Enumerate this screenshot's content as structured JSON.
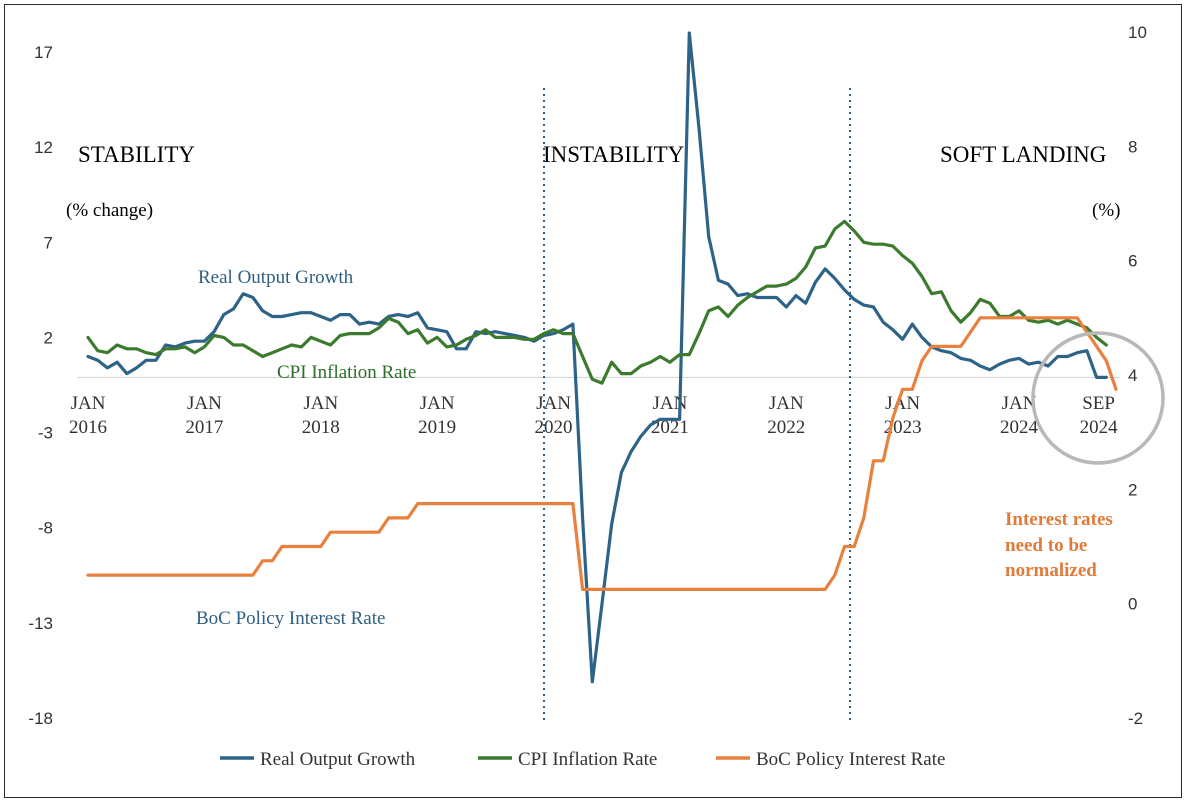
{
  "chart_data": {
    "type": "line",
    "title": "",
    "y_left": {
      "label": "(% change)",
      "range": [
        -18,
        17
      ],
      "ticks": [
        "17",
        "12",
        "7",
        "2",
        "-3",
        "-8",
        "-13",
        "-18"
      ]
    },
    "y_right": {
      "label": "(%)",
      "range": [
        -2,
        10
      ],
      "ticks": [
        "10",
        "8",
        "6",
        "4",
        "2",
        "0",
        "-2"
      ]
    },
    "x_ticks": [
      {
        "month": "JAN",
        "year": "2016",
        "t": 0
      },
      {
        "month": "JAN",
        "year": "2017",
        "t": 12
      },
      {
        "month": "JAN",
        "year": "2018",
        "t": 24
      },
      {
        "month": "JAN",
        "year": "2019",
        "t": 36
      },
      {
        "month": "JAN",
        "year": "2020",
        "t": 48
      },
      {
        "month": "JAN",
        "year": "2021",
        "t": 60
      },
      {
        "month": "JAN",
        "year": "2022",
        "t": 72
      },
      {
        "month": "JAN",
        "year": "2023",
        "t": 84
      },
      {
        "month": "JAN",
        "year": "2024",
        "t": 96
      },
      {
        "month": "SEP",
        "year": "2024",
        "t": 104
      }
    ],
    "regions": [
      {
        "label": "STABILITY"
      },
      {
        "label": "INSTABILITY"
      },
      {
        "label": "SOFT LANDING"
      }
    ],
    "dividers_t": [
      47,
      79
    ],
    "series": [
      {
        "name": "Real Output Growth",
        "axis": "left",
        "color": "#2e6388",
        "points": [
          [
            0,
            1.0
          ],
          [
            1,
            0.8
          ],
          [
            2,
            0.4
          ],
          [
            3,
            0.7
          ],
          [
            4,
            0.1
          ],
          [
            5,
            0.4
          ],
          [
            6,
            0.8
          ],
          [
            7,
            0.8
          ],
          [
            8,
            1.6
          ],
          [
            9,
            1.5
          ],
          [
            10,
            1.7
          ],
          [
            11,
            1.8
          ],
          [
            12,
            1.8
          ],
          [
            13,
            2.3
          ],
          [
            14,
            3.2
          ],
          [
            15,
            3.5
          ],
          [
            16,
            4.3
          ],
          [
            17,
            4.1
          ],
          [
            18,
            3.4
          ],
          [
            19,
            3.1
          ],
          [
            20,
            3.1
          ],
          [
            21,
            3.2
          ],
          [
            22,
            3.3
          ],
          [
            23,
            3.3
          ],
          [
            24,
            3.1
          ],
          [
            25,
            2.9
          ],
          [
            26,
            3.2
          ],
          [
            27,
            3.2
          ],
          [
            28,
            2.7
          ],
          [
            29,
            2.8
          ],
          [
            30,
            2.7
          ],
          [
            31,
            3.1
          ],
          [
            32,
            3.2
          ],
          [
            33,
            3.1
          ],
          [
            34,
            3.3
          ],
          [
            35,
            2.5
          ],
          [
            36,
            2.4
          ],
          [
            37,
            2.3
          ],
          [
            38,
            1.4
          ],
          [
            39,
            1.4
          ],
          [
            40,
            2.3
          ],
          [
            41,
            2.2
          ],
          [
            42,
            2.3
          ],
          [
            43,
            2.2
          ],
          [
            44,
            2.1
          ],
          [
            45,
            2.0
          ],
          [
            46,
            1.8
          ],
          [
            47,
            2.1
          ],
          [
            48,
            2.2
          ],
          [
            49,
            2.4
          ],
          [
            50,
            2.7
          ],
          [
            51,
            -7.5
          ],
          [
            52,
            -16.1
          ],
          [
            53,
            -12.0
          ],
          [
            54,
            -7.8
          ],
          [
            55,
            -5.1
          ],
          [
            56,
            -4.0
          ],
          [
            57,
            -3.2
          ],
          [
            58,
            -2.6
          ],
          [
            59,
            -2.3
          ],
          [
            60,
            -2.3
          ],
          [
            61,
            -2.3
          ],
          [
            62,
            18.0
          ],
          [
            63,
            13.0
          ],
          [
            64,
            7.3
          ],
          [
            65,
            5.0
          ],
          [
            66,
            4.8
          ],
          [
            67,
            4.2
          ],
          [
            68,
            4.3
          ],
          [
            69,
            4.1
          ],
          [
            70,
            4.1
          ],
          [
            71,
            4.1
          ],
          [
            72,
            3.6
          ],
          [
            73,
            4.2
          ],
          [
            74,
            3.8
          ],
          [
            75,
            4.9
          ],
          [
            76,
            5.6
          ],
          [
            77,
            5.1
          ],
          [
            78,
            4.5
          ],
          [
            79,
            4.0
          ],
          [
            80,
            3.7
          ],
          [
            81,
            3.6
          ],
          [
            82,
            2.8
          ],
          [
            83,
            2.4
          ],
          [
            84,
            1.9
          ],
          [
            85,
            2.7
          ],
          [
            86,
            2.0
          ],
          [
            87,
            1.5
          ],
          [
            88,
            1.3
          ],
          [
            89,
            1.2
          ],
          [
            90,
            0.9
          ],
          [
            91,
            0.8
          ],
          [
            92,
            0.5
          ],
          [
            93,
            0.3
          ],
          [
            94,
            0.6
          ],
          [
            95,
            0.8
          ],
          [
            96,
            0.9
          ],
          [
            97,
            0.6
          ],
          [
            98,
            0.7
          ],
          [
            99,
            0.5
          ],
          [
            100,
            1.0
          ],
          [
            101,
            1.0
          ],
          [
            102,
            1.2
          ],
          [
            103,
            1.3
          ],
          [
            104,
            -0.1
          ],
          [
            105,
            -0.1
          ]
        ]
      },
      {
        "name": "CPI Inflation Rate",
        "axis": "left",
        "color": "#3c7a2e",
        "points": [
          [
            0,
            2.0
          ],
          [
            1,
            1.3
          ],
          [
            2,
            1.2
          ],
          [
            3,
            1.6
          ],
          [
            4,
            1.4
          ],
          [
            5,
            1.4
          ],
          [
            6,
            1.2
          ],
          [
            7,
            1.1
          ],
          [
            8,
            1.4
          ],
          [
            9,
            1.4
          ],
          [
            10,
            1.5
          ],
          [
            11,
            1.2
          ],
          [
            12,
            1.5
          ],
          [
            13,
            2.1
          ],
          [
            14,
            2.0
          ],
          [
            15,
            1.6
          ],
          [
            16,
            1.6
          ],
          [
            17,
            1.3
          ],
          [
            18,
            1.0
          ],
          [
            19,
            1.2
          ],
          [
            20,
            1.4
          ],
          [
            21,
            1.6
          ],
          [
            22,
            1.5
          ],
          [
            23,
            2.0
          ],
          [
            24,
            1.8
          ],
          [
            25,
            1.6
          ],
          [
            26,
            2.1
          ],
          [
            27,
            2.2
          ],
          [
            28,
            2.2
          ],
          [
            29,
            2.2
          ],
          [
            30,
            2.5
          ],
          [
            31,
            3.0
          ],
          [
            32,
            2.8
          ],
          [
            33,
            2.2
          ],
          [
            34,
            2.4
          ],
          [
            35,
            1.7
          ],
          [
            36,
            2.0
          ],
          [
            37,
            1.5
          ],
          [
            38,
            1.6
          ],
          [
            39,
            1.9
          ],
          [
            40,
            2.1
          ],
          [
            41,
            2.4
          ],
          [
            42,
            2.0
          ],
          [
            43,
            2.0
          ],
          [
            44,
            2.0
          ],
          [
            45,
            1.9
          ],
          [
            46,
            1.9
          ],
          [
            47,
            2.2
          ],
          [
            48,
            2.4
          ],
          [
            49,
            2.2
          ],
          [
            50,
            2.2
          ],
          [
            51,
            1.0
          ],
          [
            52,
            -0.2
          ],
          [
            53,
            -0.4
          ],
          [
            54,
            0.7
          ],
          [
            55,
            0.1
          ],
          [
            56,
            0.1
          ],
          [
            57,
            0.5
          ],
          [
            58,
            0.7
          ],
          [
            59,
            1.0
          ],
          [
            60,
            0.7
          ],
          [
            61,
            1.1
          ],
          [
            62,
            1.1
          ],
          [
            63,
            2.2
          ],
          [
            64,
            3.4
          ],
          [
            65,
            3.6
          ],
          [
            66,
            3.1
          ],
          [
            67,
            3.7
          ],
          [
            68,
            4.1
          ],
          [
            69,
            4.4
          ],
          [
            70,
            4.7
          ],
          [
            71,
            4.7
          ],
          [
            72,
            4.8
          ],
          [
            73,
            5.1
          ],
          [
            74,
            5.7
          ],
          [
            75,
            6.7
          ],
          [
            76,
            6.8
          ],
          [
            77,
            7.7
          ],
          [
            78,
            8.1
          ],
          [
            79,
            7.6
          ],
          [
            80,
            7.0
          ],
          [
            81,
            6.9
          ],
          [
            82,
            6.9
          ],
          [
            83,
            6.8
          ],
          [
            84,
            6.3
          ],
          [
            85,
            5.9
          ],
          [
            86,
            5.2
          ],
          [
            87,
            4.3
          ],
          [
            88,
            4.4
          ],
          [
            89,
            3.4
          ],
          [
            90,
            2.8
          ],
          [
            91,
            3.3
          ],
          [
            92,
            4.0
          ],
          [
            93,
            3.8
          ],
          [
            94,
            3.1
          ],
          [
            95,
            3.1
          ],
          [
            96,
            3.4
          ],
          [
            97,
            2.9
          ],
          [
            98,
            2.8
          ],
          [
            99,
            2.9
          ],
          [
            100,
            2.7
          ],
          [
            101,
            2.9
          ],
          [
            102,
            2.7
          ],
          [
            103,
            2.5
          ],
          [
            104,
            2.0
          ],
          [
            105,
            1.6
          ]
        ]
      },
      {
        "name": "BoC Policy Interest Rate",
        "axis": "right",
        "color": "#e8813d",
        "points": [
          [
            0,
            0.5
          ],
          [
            15,
            0.5
          ],
          [
            16,
            0.5
          ],
          [
            17,
            0.5
          ],
          [
            18,
            0.75
          ],
          [
            19,
            0.75
          ],
          [
            20,
            1.0
          ],
          [
            21,
            1.0
          ],
          [
            22,
            1.0
          ],
          [
            23,
            1.0
          ],
          [
            24,
            1.0
          ],
          [
            25,
            1.25
          ],
          [
            26,
            1.25
          ],
          [
            27,
            1.25
          ],
          [
            28,
            1.25
          ],
          [
            29,
            1.25
          ],
          [
            30,
            1.25
          ],
          [
            31,
            1.5
          ],
          [
            32,
            1.5
          ],
          [
            33,
            1.5
          ],
          [
            34,
            1.75
          ],
          [
            49,
            1.75
          ],
          [
            50,
            1.75
          ],
          [
            51,
            0.25
          ],
          [
            52,
            0.25
          ],
          [
            75,
            0.25
          ],
          [
            76,
            0.25
          ],
          [
            77,
            0.5
          ],
          [
            78,
            1.0
          ],
          [
            79,
            1.0
          ],
          [
            80,
            1.5
          ],
          [
            81,
            2.5
          ],
          [
            82,
            2.5
          ],
          [
            83,
            3.25
          ],
          [
            84,
            3.75
          ],
          [
            85,
            3.75
          ],
          [
            86,
            4.25
          ],
          [
            87,
            4.5
          ],
          [
            88,
            4.5
          ],
          [
            89,
            4.5
          ],
          [
            90,
            4.5
          ],
          [
            91,
            4.75
          ],
          [
            92,
            5.0
          ],
          [
            102,
            5.0
          ],
          [
            103,
            4.75
          ],
          [
            104,
            4.5
          ],
          [
            105,
            4.25
          ],
          [
            106,
            3.75
          ]
        ]
      }
    ],
    "annotations": {
      "real_output_label": "Real Output Growth",
      "cpi_label": "CPI Inflation Rate",
      "boc_label": "BoC Policy Interest Rate",
      "note_lines": [
        "Interest rates",
        "need to be",
        "normalized"
      ]
    },
    "highlight_circle_t": 104,
    "legend": {
      "position": "bottom"
    },
    "grid": false
  }
}
